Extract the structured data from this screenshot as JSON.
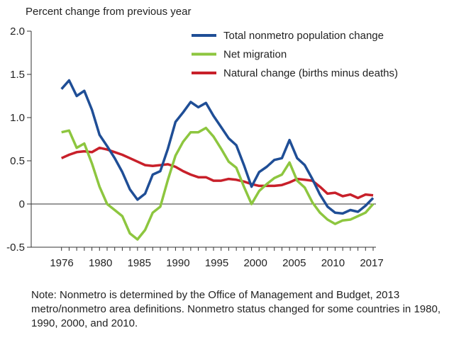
{
  "chart_data": {
    "type": "line",
    "title": "",
    "ylabel": "Percent change from previous year",
    "xlabel": "",
    "xlim": [
      1976,
      2017
    ],
    "ylim": [
      -0.5,
      2.0
    ],
    "x_tick_labels": [
      "1976",
      "1980",
      "1985",
      "1990",
      "1995",
      "2000",
      "2005",
      "2010",
      "2017"
    ],
    "y_tick_labels": [
      "2.0",
      "1.5",
      "1.0",
      "0.5",
      "0",
      "-0.5"
    ],
    "y_ticks": [
      2.0,
      1.5,
      1.0,
      0.5,
      0,
      -0.5
    ],
    "grid": false,
    "legend_position": "top-right",
    "x": [
      1976,
      1977,
      1978,
      1979,
      1980,
      1981,
      1982,
      1983,
      1984,
      1985,
      1986,
      1987,
      1988,
      1989,
      1990,
      1991,
      1992,
      1993,
      1994,
      1995,
      1996,
      1997,
      1998,
      1999,
      2000,
      2001,
      2002,
      2003,
      2004,
      2005,
      2006,
      2007,
      2008,
      2009,
      2010,
      2011,
      2012,
      2013,
      2014,
      2015,
      2016,
      2017
    ],
    "series": [
      {
        "name": "Total nonmetro population change",
        "color": "#1f4e96",
        "values": [
          1.33,
          1.43,
          1.25,
          1.31,
          1.09,
          0.8,
          0.67,
          0.53,
          0.37,
          0.17,
          0.05,
          0.12,
          0.34,
          0.38,
          0.64,
          0.95,
          1.06,
          1.18,
          1.12,
          1.17,
          1.02,
          0.89,
          0.76,
          0.68,
          0.45,
          0.2,
          0.37,
          0.43,
          0.51,
          0.53,
          0.74,
          0.53,
          0.45,
          0.29,
          0.11,
          -0.03,
          -0.1,
          -0.11,
          -0.07,
          -0.09,
          -0.02,
          0.07
        ]
      },
      {
        "name": "Net migration",
        "color": "#8dc63f",
        "values": [
          0.83,
          0.85,
          0.65,
          0.7,
          0.47,
          0.2,
          0.0,
          -0.07,
          -0.14,
          -0.34,
          -0.41,
          -0.3,
          -0.1,
          -0.03,
          0.28,
          0.56,
          0.72,
          0.83,
          0.83,
          0.88,
          0.78,
          0.64,
          0.49,
          0.42,
          0.2,
          0.0,
          0.15,
          0.23,
          0.3,
          0.34,
          0.48,
          0.27,
          0.19,
          0.02,
          -0.1,
          -0.18,
          -0.23,
          -0.19,
          -0.18,
          -0.14,
          -0.1,
          0.0
        ]
      },
      {
        "name": "Natural change (births minus deaths)",
        "color": "#c8202a",
        "values": [
          0.53,
          0.57,
          0.6,
          0.61,
          0.6,
          0.65,
          0.63,
          0.6,
          0.57,
          0.53,
          0.49,
          0.45,
          0.44,
          0.45,
          0.46,
          0.43,
          0.38,
          0.34,
          0.31,
          0.31,
          0.27,
          0.27,
          0.29,
          0.28,
          0.26,
          0.23,
          0.21,
          0.21,
          0.21,
          0.22,
          0.25,
          0.29,
          0.28,
          0.27,
          0.2,
          0.12,
          0.13,
          0.09,
          0.11,
          0.07,
          0.11,
          0.1
        ]
      }
    ]
  },
  "note": "Note: Nonmetro is determined by the Office of Management and Budget, 2013 metro/nonmetro area definitions. Nonmetro status changed for some countries in 1980, 1990, 2000, and 2010."
}
